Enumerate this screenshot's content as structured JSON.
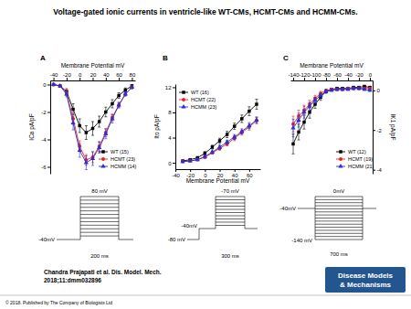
{
  "page": {
    "title": "Voltage-gated ionic currents in ventricle-like WT-CMs, HCMT-CMs and HCMM-CMs.",
    "citation": [
      "Chandra Prajapati et al. Dis. Model. Mech.",
      "2018;11:dmm032896"
    ],
    "copyright": "© 2018. Published by The Company of Biologists Ltd",
    "logo": [
      "Disease Models",
      "& Mechanisms"
    ]
  },
  "protocols": [
    {
      "top_label": "80 mV",
      "hold_label": "-40mV",
      "duration_label": "200 ms"
    },
    {
      "top_label": "-70 mV",
      "hold_label": "-40mV",
      "pre_label": "-80 mV",
      "duration_label": "300 ms"
    },
    {
      "top_label": "0mV",
      "hold_label": "-40mV",
      "bottom_label": "-140 mV",
      "duration_label": "700 ms"
    }
  ],
  "chart_data": [
    {
      "type": "line",
      "panel": "A",
      "xlabel": "Membrane Potential mV",
      "ylabel": "ICa pA/pF",
      "x": [
        -40,
        -30,
        -20,
        -10,
        0,
        10,
        20,
        30,
        40,
        50,
        60,
        70,
        80
      ],
      "xlim": [
        -45,
        85
      ],
      "xticks": [
        -40,
        -20,
        0,
        20,
        40,
        60,
        80
      ],
      "ylim": [
        -6.5,
        0.3
      ],
      "yticks": [
        0,
        -2,
        -4,
        -6
      ],
      "legend": "lower right",
      "series": [
        {
          "name": "WT (15)",
          "color": "#000000",
          "marker": "square",
          "values": [
            0,
            -0.1,
            -0.5,
            -1.8,
            -3.0,
            -3.5,
            -3.2,
            -2.7,
            -2.0,
            -1.4,
            -0.8,
            -0.4,
            -0.1
          ],
          "errors": [
            0.05,
            0.05,
            0.2,
            0.4,
            0.5,
            0.5,
            0.5,
            0.4,
            0.35,
            0.3,
            0.2,
            0.15,
            0.1
          ]
        },
        {
          "name": "HCMT (23)",
          "color": "#e8211d",
          "marker": "circle",
          "values": [
            0,
            -0.1,
            -0.6,
            -2.5,
            -4.5,
            -5.5,
            -5.3,
            -4.5,
            -3.5,
            -2.4,
            -1.5,
            -0.7,
            -0.2
          ],
          "errors": [
            0.05,
            0.05,
            0.2,
            0.4,
            0.4,
            0.4,
            0.4,
            0.35,
            0.3,
            0.25,
            0.2,
            0.1,
            0.1
          ]
        },
        {
          "name": "HCMM (14)",
          "color": "#2a2fd6",
          "marker": "triangle",
          "values": [
            0,
            -0.1,
            -0.7,
            -2.8,
            -4.8,
            -5.7,
            -5.4,
            -4.6,
            -3.6,
            -2.5,
            -1.5,
            -0.7,
            -0.2
          ],
          "errors": [
            0.05,
            0.05,
            0.2,
            0.5,
            0.5,
            0.5,
            0.5,
            0.4,
            0.35,
            0.3,
            0.2,
            0.15,
            0.1
          ]
        }
      ]
    },
    {
      "type": "line",
      "panel": "B",
      "xlabel": "Membrane Potential mV",
      "ylabel": "Ito pA/pF",
      "x": [
        -30,
        -20,
        -10,
        0,
        10,
        20,
        30,
        40,
        50,
        60,
        70
      ],
      "xlim": [
        -40,
        75
      ],
      "xticks": [
        -40,
        -20,
        0,
        20,
        40,
        60
      ],
      "ylim": [
        -1,
        12.5
      ],
      "yticks": [
        0,
        4,
        8,
        12
      ],
      "legend": "upper left",
      "series": [
        {
          "name": "WT (16)",
          "color": "#000000",
          "marker": "square",
          "values": [
            0.3,
            0.5,
            0.8,
            1.5,
            2.5,
            3.5,
            4.5,
            5.8,
            7.0,
            8.2,
            9.3
          ],
          "errors": [
            0.1,
            0.1,
            0.2,
            0.3,
            0.3,
            0.4,
            0.5,
            0.5,
            0.6,
            0.7,
            0.8
          ]
        },
        {
          "name": "HCMT (22)",
          "color": "#e8211d",
          "marker": "circle",
          "values": [
            0.2,
            0.3,
            0.5,
            0.9,
            1.6,
            2.3,
            3.0,
            3.9,
            4.8,
            5.7,
            6.7
          ],
          "errors": [
            0.1,
            0.1,
            0.1,
            0.2,
            0.2,
            0.3,
            0.3,
            0.4,
            0.4,
            0.5,
            0.5
          ]
        },
        {
          "name": "HCMM (23)",
          "color": "#2a2fd6",
          "marker": "triangle",
          "values": [
            0.2,
            0.3,
            0.5,
            1.0,
            1.7,
            2.5,
            3.3,
            4.1,
            5.0,
            5.9,
            6.8
          ],
          "errors": [
            0.1,
            0.1,
            0.1,
            0.2,
            0.2,
            0.3,
            0.3,
            0.4,
            0.4,
            0.5,
            0.5
          ]
        }
      ]
    },
    {
      "type": "line",
      "panel": "C",
      "xlabel": "Membrane Potential mV",
      "ylabel": "IK1 pA/pF",
      "x": [
        -140,
        -130,
        -120,
        -110,
        -100,
        -90,
        -80,
        -70,
        -60,
        -50,
        -40,
        -30,
        -20,
        -10,
        0
      ],
      "xlim": [
        -145,
        5
      ],
      "xticks": [
        -140,
        -120,
        -100,
        -80,
        -60,
        -40,
        -20,
        0
      ],
      "ylim": [
        -4.2,
        0.5
      ],
      "yticks": [
        0,
        -2,
        -4
      ],
      "legend": "lower right",
      "series": [
        {
          "name": "WT (12)",
          "color": "#000000",
          "marker": "square",
          "values": [
            -2.7,
            -2.1,
            -1.6,
            -1.1,
            -0.7,
            -0.35,
            -0.05,
            0.05,
            0.1,
            0.1,
            0.1,
            0.15,
            0.15,
            0.2,
            0.15
          ],
          "errors": [
            0.5,
            0.4,
            0.35,
            0.3,
            0.2,
            0.15,
            0.1,
            0.05,
            0.05,
            0.05,
            0.05,
            0.05,
            0.05,
            0.05,
            0.05
          ]
        },
        {
          "name": "HCMT (19)",
          "color": "#e8211d",
          "marker": "circle",
          "values": [
            -1.7,
            -1.3,
            -1.0,
            -0.7,
            -0.4,
            -0.15,
            0.0,
            0.05,
            0.05,
            0.05,
            0.1,
            0.1,
            0.1,
            0.1,
            0.1
          ],
          "errors": [
            0.4,
            0.3,
            0.25,
            0.2,
            0.15,
            0.1,
            0.05,
            0.05,
            0.05,
            0.05,
            0.05,
            0.05,
            0.05,
            0.05,
            0.05
          ]
        },
        {
          "name": "HCMM (21)",
          "color": "#2a2fd6",
          "marker": "triangle",
          "values": [
            -1.9,
            -1.5,
            -1.1,
            -0.8,
            -0.5,
            -0.25,
            -0.05,
            0.0,
            0.05,
            0.05,
            0.05,
            0.1,
            0.1,
            0.05,
            0.0
          ],
          "errors": [
            0.45,
            0.35,
            0.3,
            0.2,
            0.15,
            0.1,
            0.05,
            0.05,
            0.05,
            0.05,
            0.05,
            0.05,
            0.05,
            0.05,
            0.05
          ]
        }
      ]
    }
  ]
}
